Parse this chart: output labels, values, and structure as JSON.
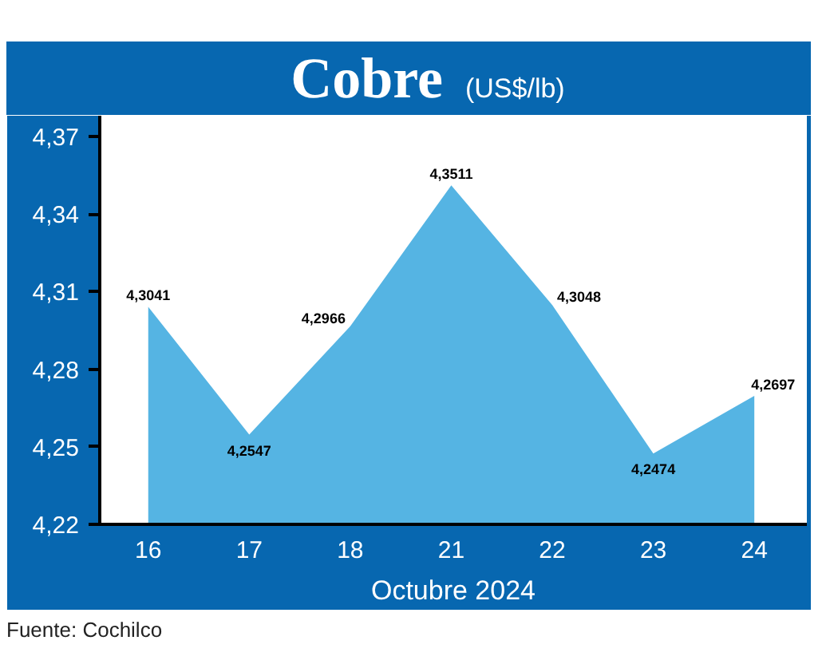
{
  "chart_data": {
    "type": "area",
    "title": "Cobre",
    "subtitle": "(US$/lb)",
    "xlabel": "Octubre 2024",
    "categories": [
      "16",
      "17",
      "18",
      "21",
      "22",
      "23",
      "24"
    ],
    "values": [
      4.3041,
      4.2547,
      4.2966,
      4.3511,
      4.3048,
      4.2474,
      4.2697
    ],
    "color": "#55b4e3",
    "value_labels": [
      "4,3041",
      "4,2547",
      "4,2966",
      "4,3511",
      "4,3048",
      "4,2474",
      "4,2697"
    ],
    "ylim": [
      4.22,
      4.378
    ],
    "yticks": [
      {
        "value": 4.22,
        "label": "4,22"
      },
      {
        "value": 4.25,
        "label": "4,25"
      },
      {
        "value": 4.28,
        "label": "4,28"
      },
      {
        "value": 4.31,
        "label": "4,31"
      },
      {
        "value": 4.34,
        "label": "4,34"
      },
      {
        "value": 4.37,
        "label": "4,37"
      }
    ],
    "annotations": [
      "Fuente: Cochilco"
    ]
  }
}
